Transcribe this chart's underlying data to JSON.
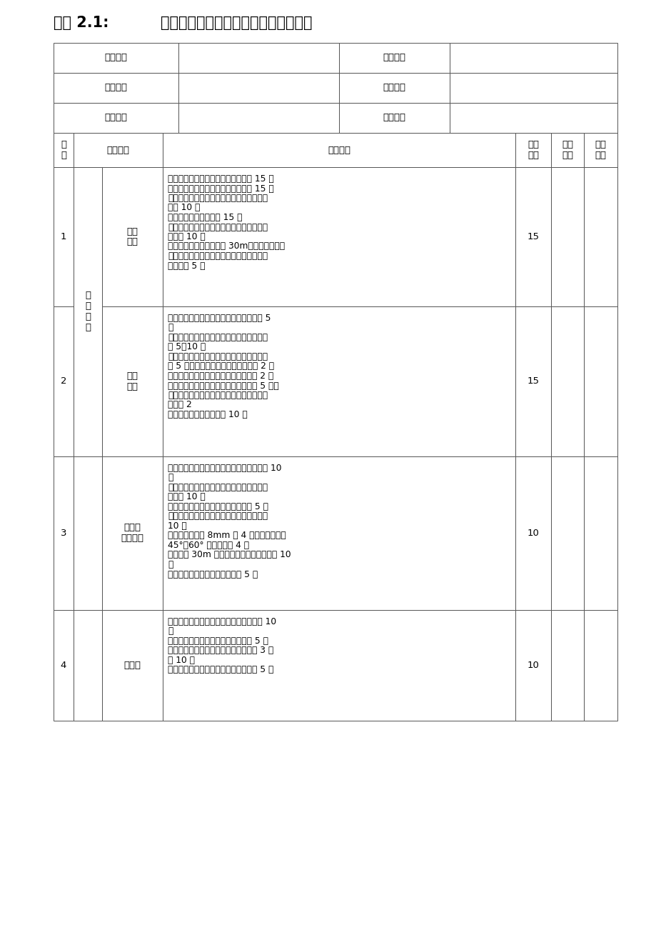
{
  "title_left": "附件 2.1:",
  "title_right": "起重机械设备（物料提升机）检查用表",
  "header_rows": [
    [
      "工程名称",
      "",
      "建设单位",
      ""
    ],
    [
      "施工单位",
      "",
      "项目经理",
      ""
    ],
    [
      "监理单位",
      "",
      "项目总监",
      ""
    ]
  ],
  "col_header": [
    "序\n号",
    "检查项目",
    "扣分标准",
    "应得\n分数",
    "扣减\n分数",
    "实得\n分数"
  ],
  "rows": [
    {
      "seq": "1",
      "guarantee": "",
      "sub_category": "安全\n装置",
      "content_lines": [
        "未安装起重量限制器、防坠安全器扣 15 分",
        "起重量限制器、防坠安全器不灵敏扣 15 分",
        "安全停层装置不符合规范要求，未达到定型",
        "化扣 10 分",
        "未安装上限位开关的扣 15 分",
        "上限位开关不灵敏、安全越程不符合规范要",
        "求的扣 10 分",
        "物料提升机安装高度超过 30m，未安装渐进式",
        "防坠安全器、自动停层、语音及影像信号装",
        "置每项扣 5 分"
      ],
      "score": "15"
    },
    {
      "seq": "2",
      "guarantee": "保\n证\n项\n目",
      "sub_category": "防护\n设施",
      "content_lines": [
        "未设置防护围栏或设置不符合规范要求扣 5",
        "分",
        "未设置进料口防护棚或设置不符合规范要求",
        "扣 5～10 分",
        "停层平台两侧未设置防护栏杆、挡脚板每处",
        "扣 5 分，设置不符合规范要求每处扣 2 分",
        "停层平台脚手板铺设不严、不平每处扣 2 分",
        "未安装平台门或平台门不起作用每处扣 5 分，",
        "平台门安装不符合规范要求、未达到定型化",
        "每处扣 2",
        "吊笼门不符合规范要求扣 10 分"
      ],
      "score": "15"
    },
    {
      "seq": "3",
      "guarantee": "",
      "sub_category": "附墙架\n与缆风绳",
      "content_lines": [
        "附墙架结构、材质、间距不符合规范要求扣 10",
        "分",
        "附墙架未与建筑结构连接或附墙架与脚手架",
        "连接扣 10 分",
        "缆风绳设置数量、位置不符合规范扣 5 分",
        "缆风绳未使用钢丝绳或未与地锚连接每处扣",
        "10 分",
        "钢丝绳直径小于 8mm 扣 4 分，角度不符合",
        "45°～60° 要求每处扣 4 分",
        "安装高度 30m 的物料提升机使用缆风绳扣 10",
        "分",
        "地锚设置不符合规范要求每处扣 5 分"
      ],
      "score": "10"
    },
    {
      "seq": "4",
      "guarantee": "",
      "sub_category": "钢丝绳",
      "content_lines": [
        "钢丝绳磨损、变形、锈蚀达到报废标准扣 10",
        "分",
        "钢丝绳夹设置不符合规范要求每处扣 5 分",
        "吊笼处于最低位置，卷筒上钢丝绳少于 3 圈",
        "扣 10 分",
        "未设置钢丝绳过路保护或钢丝绳拖地扣 5 分"
      ],
      "score": "10"
    }
  ],
  "bg_color": "#ffffff",
  "text_color": "#000000",
  "line_color": "#555555",
  "title_fontsize": 15,
  "body_fontsize": 9.5,
  "small_fontsize": 8.8
}
